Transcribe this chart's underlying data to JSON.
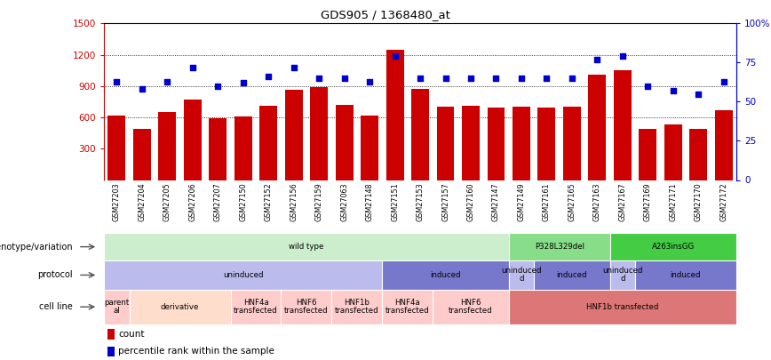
{
  "title": "GDS905 / 1368480_at",
  "samples": [
    "GSM27203",
    "GSM27204",
    "GSM27205",
    "GSM27206",
    "GSM27207",
    "GSM27150",
    "GSM27152",
    "GSM27156",
    "GSM27159",
    "GSM27063",
    "GSM27148",
    "GSM27151",
    "GSM27153",
    "GSM27157",
    "GSM27160",
    "GSM27147",
    "GSM27149",
    "GSM27161",
    "GSM27165",
    "GSM27163",
    "GSM27167",
    "GSM27169",
    "GSM27171",
    "GSM27170",
    "GSM27172"
  ],
  "counts": [
    620,
    490,
    650,
    770,
    590,
    610,
    710,
    860,
    890,
    720,
    620,
    1250,
    870,
    700,
    710,
    690,
    700,
    690,
    700,
    1010,
    1050,
    490,
    530,
    490,
    670
  ],
  "percentile": [
    63,
    58,
    63,
    72,
    60,
    62,
    66,
    72,
    65,
    65,
    63,
    79,
    65,
    65,
    65,
    65,
    65,
    65,
    65,
    77,
    79,
    60,
    57,
    55,
    63
  ],
  "ylim_left": [
    0,
    1500
  ],
  "ylim_right": [
    0,
    100
  ],
  "yticks_left": [
    300,
    600,
    900,
    1200,
    1500
  ],
  "yticks_right": [
    0,
    25,
    50,
    75,
    100
  ],
  "bar_color": "#cc0000",
  "dot_color": "#0000cc",
  "genotype_segments": [
    {
      "start": 0,
      "end": 16,
      "label": "wild type",
      "color": "#cceecc"
    },
    {
      "start": 16,
      "end": 20,
      "label": "P328L329del",
      "color": "#88dd88"
    },
    {
      "start": 20,
      "end": 25,
      "label": "A263insGG",
      "color": "#44cc44"
    }
  ],
  "protocol_segments": [
    {
      "start": 0,
      "end": 11,
      "label": "uninduced",
      "color": "#bbbbee"
    },
    {
      "start": 11,
      "end": 16,
      "label": "induced",
      "color": "#7777cc"
    },
    {
      "start": 16,
      "end": 17,
      "label": "uninduced\nd",
      "color": "#bbbbee"
    },
    {
      "start": 17,
      "end": 20,
      "label": "induced",
      "color": "#7777cc"
    },
    {
      "start": 20,
      "end": 21,
      "label": "uninduced\nd",
      "color": "#bbbbee"
    },
    {
      "start": 21,
      "end": 25,
      "label": "induced",
      "color": "#7777cc"
    }
  ],
  "cell_segments": [
    {
      "start": 0,
      "end": 1,
      "label": "parent\nal",
      "color": "#ffcccc"
    },
    {
      "start": 1,
      "end": 5,
      "label": "derivative",
      "color": "#ffddcc"
    },
    {
      "start": 5,
      "end": 7,
      "label": "HNF4a\ntransfected",
      "color": "#ffcccc"
    },
    {
      "start": 7,
      "end": 9,
      "label": "HNF6\ntransfected",
      "color": "#ffcccc"
    },
    {
      "start": 9,
      "end": 11,
      "label": "HNF1b\ntransfected",
      "color": "#ffcccc"
    },
    {
      "start": 11,
      "end": 13,
      "label": "HNF4a\ntransfected",
      "color": "#ffcccc"
    },
    {
      "start": 13,
      "end": 16,
      "label": "HNF6\ntransfected",
      "color": "#ffcccc"
    },
    {
      "start": 16,
      "end": 25,
      "label": "HNF1b transfected",
      "color": "#dd7777"
    }
  ],
  "row_labels": [
    "genotype/variation",
    "protocol",
    "cell line"
  ],
  "legend_items": [
    {
      "color": "#cc0000",
      "label": "count"
    },
    {
      "color": "#0000cc",
      "label": "percentile rank within the sample"
    }
  ]
}
